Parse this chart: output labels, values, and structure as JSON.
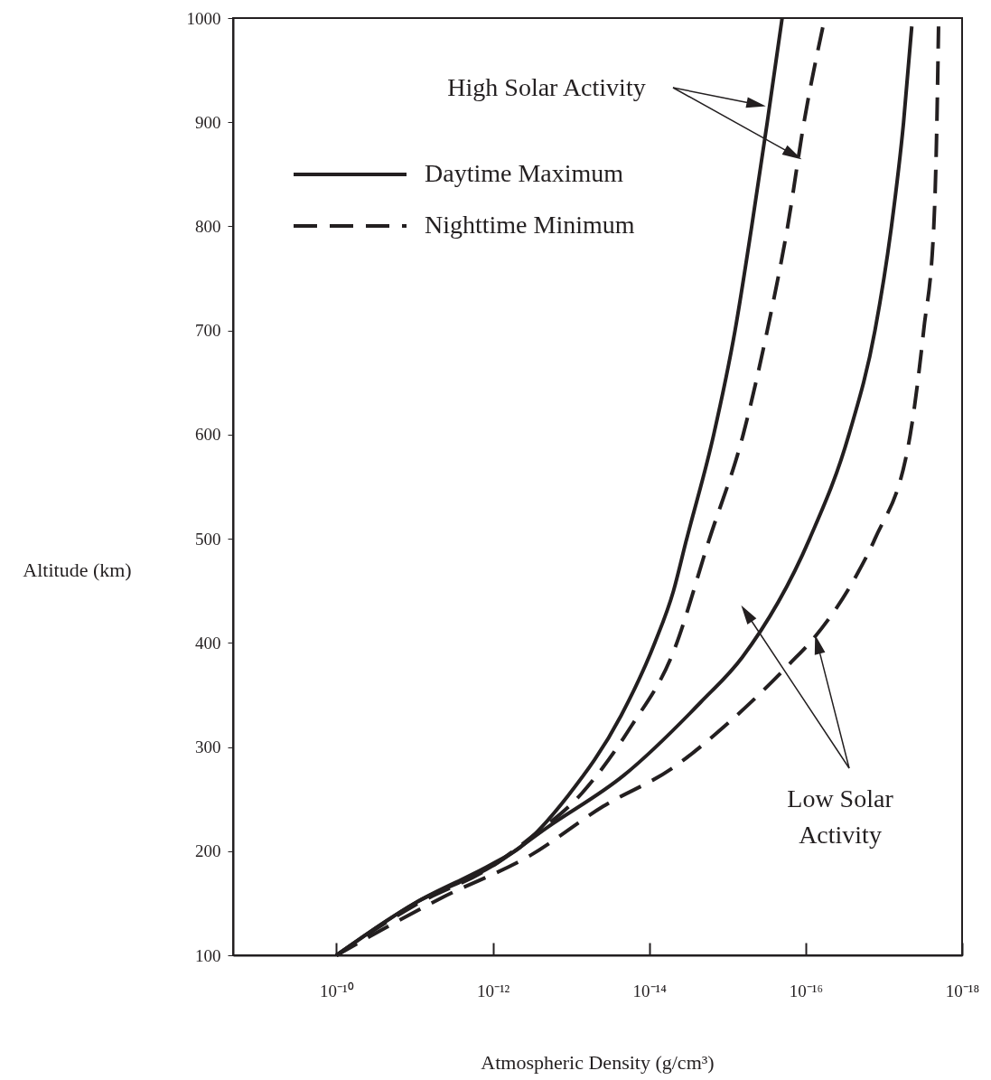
{
  "chart_data": {
    "type": "line",
    "xlabel": "Atmospheric Density (g/cm³)",
    "ylabel": "Altitude (km)",
    "log": "x",
    "xlim": [
      2.1e-09,
      1e-18
    ],
    "xticks": [
      {
        "value": 1e-10,
        "label": "10⁻¹⁰"
      },
      {
        "value": 1e-12,
        "label": "10⁻¹²"
      },
      {
        "value": 1e-14,
        "label": "10⁻¹⁴"
      },
      {
        "value": 1e-16,
        "label": "10⁻¹⁶"
      },
      {
        "value": 1e-18,
        "label": "10⁻¹⁸"
      }
    ],
    "ylim": [
      100,
      1000
    ],
    "yticks": [
      100,
      200,
      300,
      400,
      500,
      600,
      700,
      800,
      900,
      1000
    ],
    "legend": "top left",
    "series": [
      {
        "name": "Daytime Maximum",
        "color": "#231f20",
        "line_style": "solid",
        "x": [
          1e-10,
          1e-11,
          1e-12,
          4.6e-13,
          1.1e-13,
          2.3e-14,
          8.5e-15,
          4.9e-15,
          3.4e-15,
          1.5e-15,
          8e-16,
          4.9e-16,
          3.1e-16,
          2e-16
        ],
        "values": [
          100,
          150,
          188,
          203,
          253,
          330,
          400,
          450,
          497,
          600,
          700,
          800,
          900,
          1000
        ]
      },
      {
        "name": "Nighttime Minimum",
        "color": "#231f20",
        "line_style": "dashed",
        "x": [
          1e-10,
          1e-11,
          1e-12,
          3.3e-13,
          7.2e-14,
          1.7e-14,
          5e-15,
          1.7e-15,
          6.3e-16,
          3.1e-16,
          1.7e-16,
          1.05e-16,
          5.7e-17
        ],
        "values": [
          100,
          148,
          186,
          213,
          256,
          320,
          390,
          500,
          600,
          700,
          800,
          900,
          1000
        ]
      },
      {
        "color": "#231f20",
        "line_style": "solid",
        "x": [
          1e-10,
          1e-11,
          1e-12,
          2e-13,
          2.1e-14,
          2.2e-15,
          6.5e-16,
          8.9e-17,
          2.8e-17,
          1.3e-17,
          8e-18,
          5.6e-18,
          4.4e-18
        ],
        "values": [
          100,
          150,
          186,
          223,
          273,
          343,
          386,
          500,
          600,
          700,
          800,
          900,
          992
        ]
      },
      {
        "color": "#231f20",
        "line_style": "dashed",
        "x": [
          1e-10,
          4.3e-12,
          3.3e-13,
          3.9e-14,
          5e-15,
          9.8e-16,
          1.6e-16,
          7.6e-17,
          2.2e-17,
          1.3e-17,
          4.6e-18,
          3.1e-18,
          2.3e-18,
          2.1e-18,
          2e-18
        ],
        "values": [
          100,
          156,
          196,
          243,
          280,
          323,
          380,
          406,
          466,
          500,
          600,
          700,
          800,
          900,
          992
        ]
      }
    ],
    "annotations": [
      "High Solar Activity",
      "Low Solar\nActivity"
    ]
  }
}
